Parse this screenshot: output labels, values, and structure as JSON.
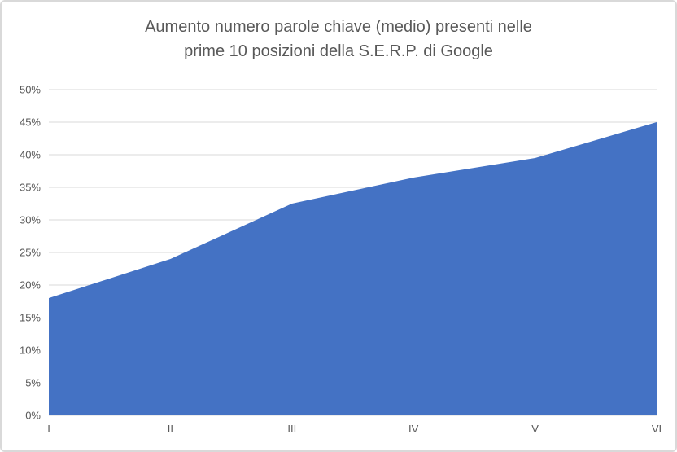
{
  "chart_data": {
    "type": "area",
    "title": "Aumento numero parole chiave (medio) presenti nelle prime 10 posizioni della S.E.R.P. di Google",
    "title_lines": [
      "Aumento numero parole chiave (medio) presenti nelle",
      "prime 10 posizioni della S.E.R.P. di Google"
    ],
    "categories": [
      "I",
      "II",
      "III",
      "IV",
      "V",
      "VI"
    ],
    "values": [
      18,
      24,
      32.5,
      36.5,
      39.5,
      45
    ],
    "xlabel": "",
    "ylabel": "",
    "ylim": [
      0,
      50
    ],
    "ytick_step": 5,
    "ytick_labels": [
      "0%",
      "5%",
      "10%",
      "15%",
      "20%",
      "25%",
      "30%",
      "35%",
      "40%",
      "45%",
      "50%"
    ],
    "grid": true,
    "legend": "none",
    "colors": {
      "area_fill": "#4472C4",
      "gridline": "#D9D9D9",
      "axis_line": "#D9D9D9",
      "text": "#595959",
      "frame_border": "#D9D9D9",
      "background": "#FFFFFF"
    }
  }
}
